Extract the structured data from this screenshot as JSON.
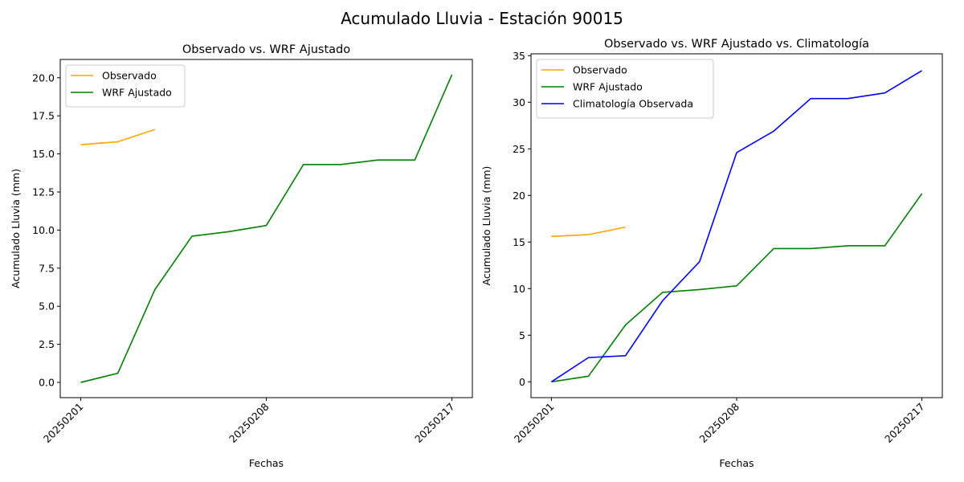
{
  "figure": {
    "suptitle": "Acumulado Lluvia - Estación 90015"
  },
  "chart_data": [
    {
      "type": "line",
      "title": "Observado vs. WRF Ajustado",
      "xlabel": "Fechas",
      "ylabel": "Acumulado Lluvia (mm)",
      "x": [
        1,
        2,
        3,
        4,
        5,
        6,
        7,
        8,
        9,
        10,
        11
      ],
      "x_tick_values": [
        1,
        6,
        11
      ],
      "x_tick_labels": [
        "20250201",
        "20250208",
        "20250217"
      ],
      "ylim": [
        -1.0,
        21.2
      ],
      "y_ticks": [
        0.0,
        2.5,
        5.0,
        7.5,
        10.0,
        12.5,
        15.0,
        17.5,
        20.0
      ],
      "y_tick_labels": [
        "0.0",
        "2.5",
        "5.0",
        "7.5",
        "10.0",
        "12.5",
        "15.0",
        "17.5",
        "20.0"
      ],
      "legend_position": "upper-left",
      "series": [
        {
          "name": "Observado",
          "color": "#ffa500",
          "values": [
            15.6,
            15.8,
            16.6,
            null,
            null,
            null,
            null,
            null,
            null,
            null,
            null
          ]
        },
        {
          "name": "WRF Ajustado",
          "color": "#008000",
          "values": [
            0.0,
            0.6,
            6.1,
            9.6,
            9.9,
            10.3,
            14.3,
            14.3,
            14.6,
            14.6,
            20.2
          ]
        }
      ]
    },
    {
      "type": "line",
      "title": "Observado vs. WRF Ajustado vs. Climatología",
      "xlabel": "Fechas",
      "ylabel": "Acumulado Lluvia (mm)",
      "x": [
        1,
        2,
        3,
        4,
        5,
        6,
        7,
        8,
        9,
        10,
        11
      ],
      "x_tick_values": [
        1,
        6,
        11
      ],
      "x_tick_labels": [
        "20250201",
        "20250208",
        "20250217"
      ],
      "ylim": [
        -1.7,
        35.2
      ],
      "y_ticks": [
        0,
        5,
        10,
        15,
        20,
        25,
        30,
        35
      ],
      "y_tick_labels": [
        "0",
        "5",
        "10",
        "15",
        "20",
        "25",
        "30",
        "35"
      ],
      "legend_position": "upper-left",
      "series": [
        {
          "name": "Observado",
          "color": "#ffa500",
          "values": [
            15.6,
            15.8,
            16.6,
            null,
            null,
            null,
            null,
            null,
            null,
            null,
            null
          ]
        },
        {
          "name": "WRF Ajustado",
          "color": "#008000",
          "values": [
            0.0,
            0.6,
            6.1,
            9.6,
            9.9,
            10.3,
            14.3,
            14.3,
            14.6,
            14.6,
            20.2
          ]
        },
        {
          "name": "Climatología Observada",
          "color": "#0000ff",
          "values": [
            0.0,
            2.6,
            2.8,
            8.7,
            12.9,
            24.6,
            26.9,
            30.4,
            30.4,
            31.0,
            33.4
          ]
        }
      ]
    }
  ]
}
